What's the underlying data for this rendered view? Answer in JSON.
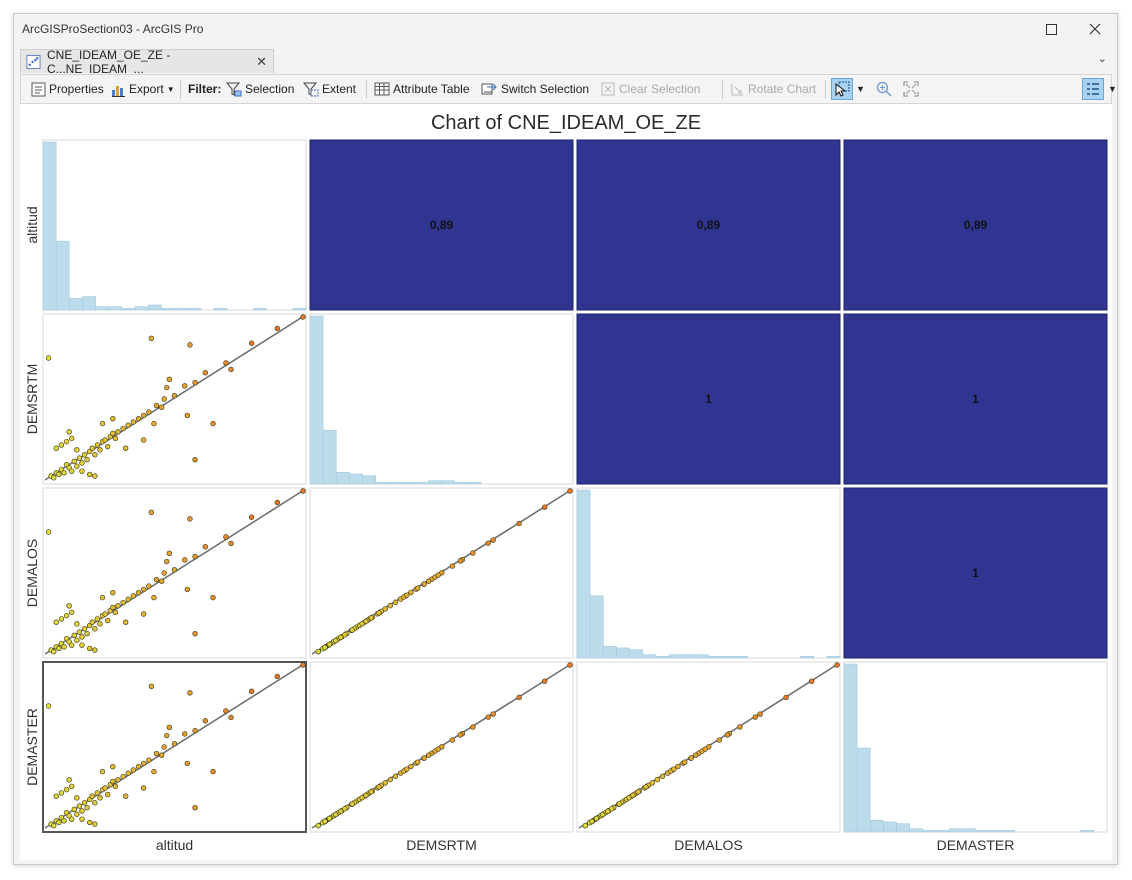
{
  "window": {
    "title": "ArcGISProSection03 - ArcGIS Pro"
  },
  "tab": {
    "label": "CNE_IDEAM_OE_ZE  - C...NE_IDEAM_...",
    "close": "✕"
  },
  "toolbar": {
    "properties": "Properties",
    "export": "Export",
    "filter": "Filter:",
    "selection": "Selection",
    "extent": "Extent",
    "attribute_table": "Attribute Table",
    "switch_selection": "Switch Selection",
    "clear_selection": "Clear Selection",
    "rotate_chart": "Rotate Chart"
  },
  "colors": {
    "matrix_cell": "#303591",
    "histogram": "#bcdcec",
    "trend_line": "#707070"
  },
  "chart_data": {
    "type": "scatter",
    "title": "Chart of CNE_IDEAM_OE_ZE",
    "variables": [
      "altitud",
      "DEMSRTM",
      "DEMALOS",
      "DEMASTER"
    ],
    "correlation_matrix": [
      {
        "row": "altitud",
        "col": "DEMSRTM",
        "value": "0,89"
      },
      {
        "row": "altitud",
        "col": "DEMALOS",
        "value": "0,89"
      },
      {
        "row": "altitud",
        "col": "DEMASTER",
        "value": "0,89"
      },
      {
        "row": "DEMSRTM",
        "col": "DEMALOS",
        "value": "1"
      },
      {
        "row": "DEMSRTM",
        "col": "DEMASTER",
        "value": "1"
      },
      {
        "row": "DEMALOS",
        "col": "DEMASTER",
        "value": "1"
      }
    ],
    "histograms": {
      "altitud": [
        1.0,
        0.41,
        0.07,
        0.08,
        0.02,
        0.02,
        0.01,
        0.02,
        0.03,
        0.01,
        0.01,
        0.01,
        0.0,
        0.01,
        0.0,
        0.0,
        0.01,
        0.0,
        0.0,
        0.01
      ],
      "DEMSRTM": [
        1.0,
        0.32,
        0.07,
        0.06,
        0.05,
        0.01,
        0.01,
        0.01,
        0.01,
        0.02,
        0.02,
        0.01,
        0.01,
        0.0,
        0.0,
        0.0,
        0.0,
        0.0,
        0.0,
        0.0
      ],
      "DEMALOS": [
        1.0,
        0.37,
        0.07,
        0.06,
        0.05,
        0.02,
        0.01,
        0.02,
        0.02,
        0.02,
        0.01,
        0.01,
        0.01,
        0.0,
        0.0,
        0.0,
        0.0,
        0.01,
        0.0,
        0.01
      ],
      "DEMASTER": [
        1.0,
        0.5,
        0.07,
        0.06,
        0.05,
        0.02,
        0.01,
        0.01,
        0.02,
        0.02,
        0.01,
        0.01,
        0.01,
        0.0,
        0.0,
        0.0,
        0.0,
        0.0,
        0.01,
        0.0
      ]
    },
    "scatter_altitud_vs_dem": [
      [
        0.02,
        0.03
      ],
      [
        0.03,
        0.02
      ],
      [
        0.04,
        0.05
      ],
      [
        0.05,
        0.04
      ],
      [
        0.06,
        0.07
      ],
      [
        0.07,
        0.05
      ],
      [
        0.08,
        0.1
      ],
      [
        0.09,
        0.08
      ],
      [
        0.1,
        0.06
      ],
      [
        0.11,
        0.12
      ],
      [
        0.12,
        0.09
      ],
      [
        0.13,
        0.14
      ],
      [
        0.14,
        0.11
      ],
      [
        0.15,
        0.16
      ],
      [
        0.16,
        0.13
      ],
      [
        0.17,
        0.18
      ],
      [
        0.18,
        0.2
      ],
      [
        0.19,
        0.16
      ],
      [
        0.2,
        0.22
      ],
      [
        0.21,
        0.19
      ],
      [
        0.22,
        0.24
      ],
      [
        0.23,
        0.25
      ],
      [
        0.24,
        0.21
      ],
      [
        0.25,
        0.27
      ],
      [
        0.26,
        0.29
      ],
      [
        0.27,
        0.26
      ],
      [
        0.28,
        0.3
      ],
      [
        0.3,
        0.32
      ],
      [
        0.32,
        0.34
      ],
      [
        0.34,
        0.36
      ],
      [
        0.36,
        0.38
      ],
      [
        0.38,
        0.4
      ],
      [
        0.4,
        0.42
      ],
      [
        0.43,
        0.46
      ],
      [
        0.46,
        0.5
      ],
      [
        0.5,
        0.52
      ],
      [
        0.54,
        0.58
      ],
      [
        0.58,
        0.6
      ],
      [
        0.62,
        0.66
      ],
      [
        0.7,
        0.72
      ],
      [
        0.8,
        0.84
      ],
      [
        0.9,
        0.93
      ],
      [
        1.0,
        1.0
      ],
      [
        0.01,
        0.75
      ],
      [
        0.09,
        0.3
      ],
      [
        0.04,
        0.2
      ],
      [
        0.06,
        0.22
      ],
      [
        0.08,
        0.24
      ],
      [
        0.1,
        0.26
      ],
      [
        0.12,
        0.19
      ],
      [
        0.14,
        0.06
      ],
      [
        0.19,
        0.03
      ],
      [
        0.17,
        0.04
      ],
      [
        0.22,
        0.35
      ],
      [
        0.26,
        0.38
      ],
      [
        0.31,
        0.2
      ],
      [
        0.38,
        0.25
      ],
      [
        0.42,
        0.35
      ],
      [
        0.45,
        0.45
      ],
      [
        0.47,
        0.57
      ],
      [
        0.48,
        0.62
      ],
      [
        0.55,
        0.4
      ],
      [
        0.58,
        0.13
      ],
      [
        0.65,
        0.35
      ],
      [
        0.41,
        0.87
      ],
      [
        0.56,
        0.83
      ],
      [
        0.72,
        0.68
      ]
    ],
    "axes": [
      "altitud",
      "DEMSRTM",
      "DEMALOS",
      "DEMASTER"
    ]
  }
}
